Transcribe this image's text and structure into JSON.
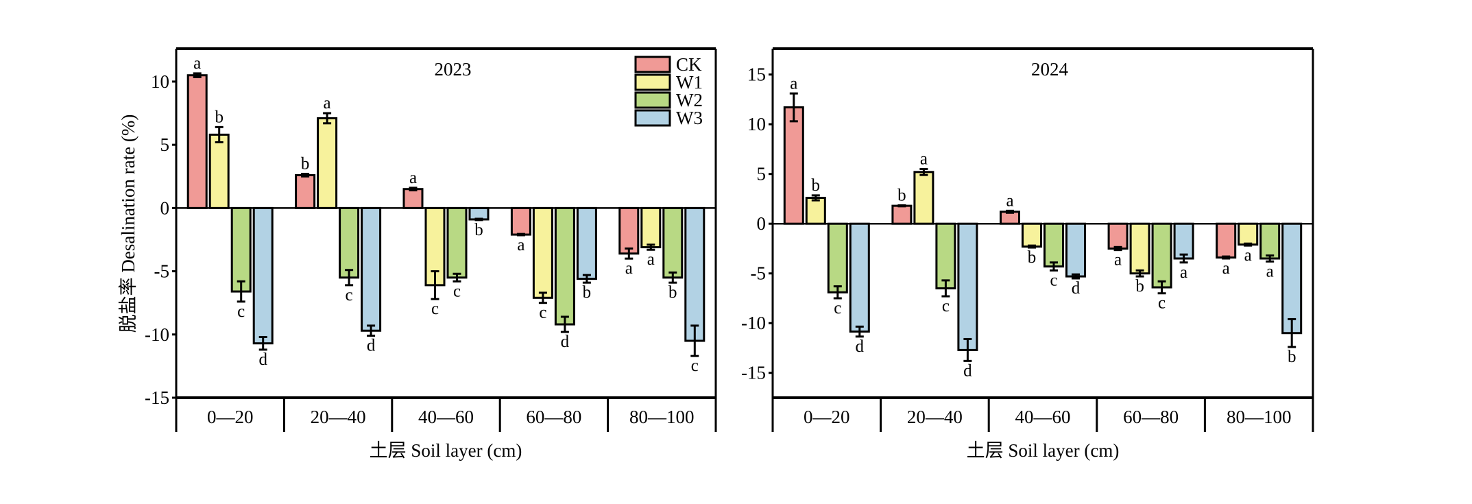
{
  "figure": {
    "ylabel": "脱盐率 Desalination rate (%)",
    "xlabel": "土层 Soil layer (cm)"
  },
  "legend": {
    "placement": "top-right of first panel",
    "entries": [
      {
        "name": "CK",
        "color": "#F09A96"
      },
      {
        "name": "W1",
        "color": "#F7F29C"
      },
      {
        "name": "W2",
        "color": "#B8D984"
      },
      {
        "name": "W3",
        "color": "#B2D2E4"
      }
    ]
  },
  "chart_data": [
    {
      "type": "bar",
      "title": "2023",
      "xlabel": "土层 Soil layer (cm)",
      "ylabel": "脱盐率 Desalination rate (%)",
      "categories": [
        "0—20",
        "20—40",
        "40—60",
        "60—80",
        "80—100"
      ],
      "ylim": [
        -15,
        12.6
      ],
      "yticks": [
        -15,
        -10,
        -5,
        0,
        5,
        10
      ],
      "grid": false,
      "series": [
        {
          "name": "CK",
          "values": [
            10.5,
            2.6,
            1.5,
            -2.1,
            -3.6
          ],
          "errors": [
            0.15,
            0.1,
            0.1,
            0.05,
            0.4
          ],
          "letters": [
            "a",
            "b",
            "a",
            "a",
            "a"
          ]
        },
        {
          "name": "W1",
          "values": [
            5.8,
            7.1,
            -6.1,
            -7.1,
            -3.1
          ],
          "errors": [
            0.6,
            0.4,
            1.1,
            0.4,
            0.2
          ],
          "letters": [
            "b",
            "a",
            "c",
            "c",
            "a"
          ]
        },
        {
          "name": "W2",
          "values": [
            -6.6,
            -5.5,
            -5.5,
            -9.2,
            -5.5
          ],
          "errors": [
            0.8,
            0.6,
            0.3,
            0.6,
            0.4
          ],
          "letters": [
            "c",
            "c",
            "c",
            "d",
            "b"
          ]
        },
        {
          "name": "W3",
          "values": [
            -10.7,
            -9.7,
            -0.9,
            -5.6,
            -10.5
          ],
          "errors": [
            0.5,
            0.4,
            0.05,
            0.3,
            1.2
          ],
          "letters": [
            "d",
            "d",
            "b",
            "b",
            "c"
          ]
        }
      ]
    },
    {
      "type": "bar",
      "title": "2024",
      "xlabel": "土层 Soil layer (cm)",
      "ylabel": "",
      "categories": [
        "0—20",
        "20—40",
        "40—60",
        "60—80",
        "80—100"
      ],
      "ylim": [
        -17.5,
        17.6
      ],
      "yticks": [
        -15,
        -10,
        -5,
        0,
        5,
        10,
        15
      ],
      "grid": false,
      "series": [
        {
          "name": "CK",
          "values": [
            11.7,
            1.8,
            1.2,
            -2.5,
            -3.4
          ],
          "errors": [
            1.4,
            0.05,
            0.1,
            0.15,
            0.1
          ],
          "letters": [
            "a",
            "b",
            "a",
            "a",
            "a"
          ]
        },
        {
          "name": "W1",
          "values": [
            2.6,
            5.2,
            -2.3,
            -5.0,
            -2.1
          ],
          "errors": [
            0.25,
            0.3,
            0.1,
            0.3,
            0.1
          ],
          "letters": [
            "b",
            "a",
            "b",
            "b",
            "a"
          ]
        },
        {
          "name": "W2",
          "values": [
            -6.9,
            -6.5,
            -4.3,
            -6.4,
            -3.5
          ],
          "errors": [
            0.6,
            0.8,
            0.4,
            0.6,
            0.3
          ],
          "letters": [
            "c",
            "c",
            "c",
            "c",
            "a"
          ]
        },
        {
          "name": "W3",
          "values": [
            -10.85,
            -12.7,
            -5.3,
            -3.5,
            -11.0
          ],
          "errors": [
            0.5,
            1.1,
            0.2,
            0.4,
            1.4
          ],
          "letters": [
            "d",
            "d",
            "d",
            "a",
            "b"
          ]
        }
      ]
    }
  ]
}
